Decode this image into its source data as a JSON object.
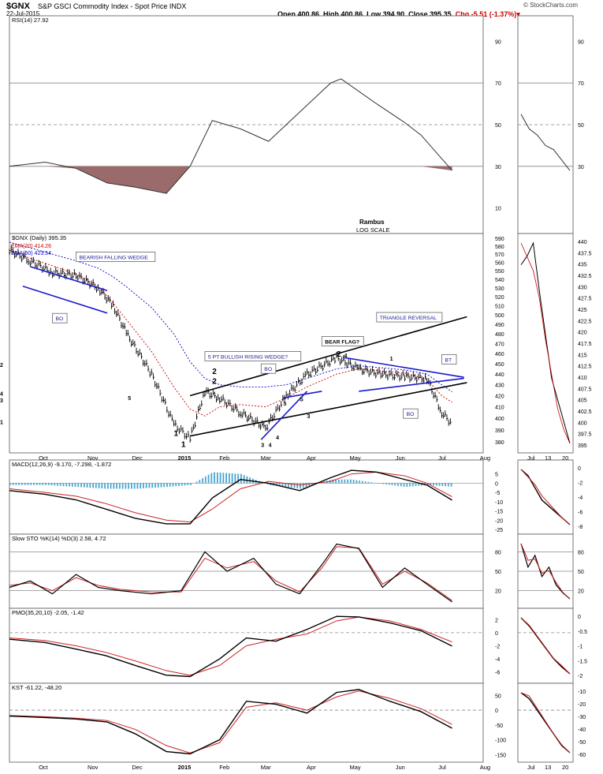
{
  "header": {
    "symbol": "$GNX",
    "name": "S&P GSCI Commodity Index - Spot Price",
    "exchange": "INDX",
    "date": "22-Jul-2015",
    "open": "Open 400.86",
    "high": "High 400.86",
    "low": "Low 394.90",
    "close": "Close 395.35",
    "chg": "Chg -5.51 (-1.37%)",
    "brand": "© StockCharts.com"
  },
  "colors": {
    "price": "#000000",
    "ema20": "#cc0000",
    "ema50": "#0000cc",
    "trend_black": "#000000",
    "trend_blue": "#1a1acc",
    "rsi_fill": "#9b6b6b",
    "hist": "#4aa6d0",
    "signal": "#cc2222"
  },
  "x_labels": [
    "Oct",
    "Nov",
    "Dec",
    "2015",
    "Feb",
    "Mar",
    "Apr",
    "May",
    "Jun",
    "Jul",
    "Aug"
  ],
  "mini_x_labels": [
    "Jul",
    "13",
    "20"
  ],
  "notes": {
    "author": "Rambus",
    "scale": "LOG SCALE"
  },
  "chart_data": [
    {
      "type": "line",
      "panel": "rsi",
      "legend": "RSI(14) 27.92",
      "ylim": [
        0,
        100
      ],
      "ticks": [
        10,
        30,
        50,
        70,
        90
      ],
      "reference_lines": [
        30,
        50,
        70
      ],
      "x": [
        "Sep 26",
        "Oct 20",
        "Nov 10",
        "Dec 1",
        "Dec 20",
        "Jan 10",
        "Jan 26",
        "Feb 10",
        "Mar 1",
        "Mar 20",
        "Apr 10",
        "May 1",
        "May 8",
        "Jun 1",
        "Jun 20",
        "Jul 1",
        "Jul 22"
      ],
      "values": [
        30,
        32,
        29,
        22,
        20,
        17,
        30,
        52,
        48,
        42,
        56,
        70,
        72,
        60,
        51,
        45,
        28
      ]
    },
    {
      "type": "line",
      "panel": "price",
      "legend": "$GNX (Daily) 395.35",
      "ylim": [
        375,
        590
      ],
      "scale": "log",
      "ticks": [
        380,
        390,
        400,
        410,
        420,
        430,
        440,
        450,
        460,
        470,
        480,
        490,
        500,
        510,
        520,
        530,
        540,
        550,
        560,
        570,
        580,
        590
      ],
      "x": [
        "Sep 26",
        "Oct 10",
        "Oct 25",
        "Nov 10",
        "Nov 25",
        "Dec 5",
        "Dec 15",
        "Dec 31",
        "Jan 15",
        "Jan 26",
        "Feb 5",
        "Feb 15",
        "Mar 1",
        "Mar 18",
        "Apr 1",
        "Apr 15",
        "May 5",
        "May 20",
        "Jun 5",
        "Jun 20",
        "Jul 5",
        "Jul 15",
        "Jul 22"
      ],
      "series": [
        {
          "name": "EMA(20) 414.26",
          "values": [
            575,
            565,
            556,
            546,
            532,
            513,
            493,
            462,
            428,
            408,
            402,
            410,
            412,
            410,
            418,
            428,
            440,
            445,
            443,
            441,
            435,
            420,
            414
          ]
        },
        {
          "name": "EMA(50) 423.54",
          "values": [
            585,
            578,
            570,
            562,
            553,
            543,
            530,
            508,
            480,
            452,
            436,
            430,
            428,
            428,
            430,
            436,
            445,
            448,
            446,
            444,
            440,
            430,
            423.5
          ]
        }
      ],
      "close": [
        575,
        562,
        548,
        545,
        530,
        510,
        478,
        440,
        395,
        383,
        424,
        418,
        405,
        392,
        420,
        440,
        456,
        445,
        440,
        438,
        436,
        405,
        395.35
      ],
      "trendlines": [
        {
          "color": "black",
          "from": [
            "Jan 26",
            385
          ],
          "to": [
            "Aug 1",
            432
          ]
        },
        {
          "color": "black",
          "from": [
            "Jan 26",
            420
          ],
          "to": [
            "Aug 1",
            498
          ]
        },
        {
          "color": "blue",
          "from": [
            "Oct 10",
            555
          ],
          "to": [
            "Dec 1",
            527
          ]
        },
        {
          "color": "blue",
          "from": [
            "Oct 5",
            532
          ],
          "to": [
            "Dec 1",
            502
          ]
        },
        {
          "color": "blue",
          "from": [
            "Mar 15",
            382
          ],
          "to": [
            "Apr 15",
            424
          ]
        },
        {
          "color": "blue",
          "from": [
            "Mar 30",
            418
          ],
          "to": [
            "Apr 25",
            424
          ]
        },
        {
          "color": "blue",
          "from": [
            "May 10",
            456
          ],
          "to": [
            "Jul 30",
            437
          ]
        },
        {
          "color": "blue",
          "from": [
            "May 20",
            424
          ],
          "to": [
            "Jul 30",
            436
          ]
        }
      ],
      "labels": [
        "BEARISH FALLING WEDGE",
        "BO",
        "5 PT BULLISH RISING WEDGE?",
        "BO",
        "BEAR FLAG?",
        "TRIANGLE REVERSAL",
        "BT",
        "BO"
      ],
      "wave_labels": [
        "1",
        "2",
        "3",
        "4",
        "5",
        "S",
        "1",
        "3",
        "2",
        "4",
        "1",
        "2",
        "3",
        "4",
        "5",
        "4",
        "1",
        "2"
      ]
    },
    {
      "type": "line",
      "panel": "macd",
      "legend": "MACD(12,26,9) -9.170, -7.298, -1.872",
      "ylim": [
        -25,
        10
      ],
      "ticks": [
        5,
        0,
        -5,
        -10,
        -15,
        -20,
        -25
      ],
      "x": [
        "Sep 26",
        "Oct 20",
        "Nov 10",
        "Nov 30",
        "Dec 20",
        "Jan 10",
        "Jan 26",
        "Feb 10",
        "Mar 1",
        "Mar 20",
        "Apr 10",
        "May 1",
        "May 15",
        "Jun 1",
        "Jun 20",
        "Jul 5",
        "Jul 22"
      ],
      "series": [
        {
          "name": "MACD",
          "values": [
            -4,
            -6,
            -9,
            -14,
            -19,
            -22,
            -22,
            -8,
            2,
            0,
            -4,
            3,
            7,
            6,
            2,
            -1,
            -9.17
          ]
        },
        {
          "name": "Signal",
          "values": [
            -3,
            -5,
            -7,
            -11,
            -16,
            -20,
            -21,
            -14,
            -3,
            1,
            -1,
            1,
            5,
            6,
            4,
            0,
            -7.298
          ]
        },
        {
          "name": "Histogram",
          "values": [
            -1,
            -1,
            -2,
            -3,
            -3,
            -2,
            -1,
            6,
            5,
            -1,
            -3,
            2,
            2,
            0,
            -2,
            -1,
            -1.872
          ]
        }
      ]
    },
    {
      "type": "line",
      "panel": "sto",
      "legend": "Slow STO %K(14) %D(3) 2.58, 4.72",
      "ylim": [
        0,
        100
      ],
      "ticks": [
        20,
        50,
        80
      ],
      "reference_lines": [
        20,
        50,
        80
      ],
      "x": [
        "Sep 26",
        "Oct 10",
        "Oct 25",
        "Nov 10",
        "Nov 25",
        "Dec 10",
        "Dec 31",
        "Jan 20",
        "Feb 5",
        "Feb 20",
        "Mar 10",
        "Mar 25",
        "Apr 10",
        "Apr 25",
        "May 5",
        "May 20",
        "Jun 5",
        "Jun 20",
        "Jul 5",
        "Jul 22"
      ],
      "series": [
        {
          "name": "%K",
          "values": [
            25,
            35,
            15,
            45,
            25,
            20,
            15,
            20,
            80,
            50,
            70,
            30,
            15,
            60,
            92,
            85,
            25,
            55,
            30,
            2.58
          ]
        },
        {
          "name": "%D",
          "values": [
            28,
            32,
            20,
            40,
            28,
            22,
            18,
            18,
            70,
            55,
            65,
            35,
            18,
            55,
            88,
            86,
            30,
            50,
            32,
            4.72
          ]
        }
      ]
    },
    {
      "type": "line",
      "panel": "pmo",
      "legend": "PMO(35,20,10) -2.05, -1.42",
      "ylim": [
        -7,
        3
      ],
      "ticks": [
        2,
        0,
        -2,
        -4,
        -6
      ],
      "reference_lines": [
        0
      ],
      "x": [
        "Sep 26",
        "Oct 20",
        "Nov 10",
        "Nov 30",
        "Dec 20",
        "Jan 10",
        "Jan 26",
        "Feb 15",
        "Mar 5",
        "Mar 25",
        "Apr 15",
        "May 5",
        "May 20",
        "Jun 10",
        "Jul 1",
        "Jul 22"
      ],
      "series": [
        {
          "name": "PMO",
          "values": [
            -1,
            -1.5,
            -2.5,
            -3.5,
            -5,
            -6.5,
            -6.7,
            -4,
            -0.8,
            -1.3,
            0.5,
            2.5,
            2.4,
            1.5,
            0.3,
            -2.05
          ]
        },
        {
          "name": "Signal",
          "values": [
            -0.8,
            -1.2,
            -2,
            -3,
            -4.3,
            -5.8,
            -6.5,
            -5,
            -2,
            -1,
            -0.2,
            1.8,
            2.4,
            1.8,
            0.5,
            -1.42
          ]
        }
      ]
    },
    {
      "type": "line",
      "panel": "kst",
      "legend": "KST -61.22, -48.20",
      "ylim": [
        -160,
        75
      ],
      "ticks": [
        50,
        0,
        -50,
        -100,
        -150
      ],
      "reference_lines": [
        0
      ],
      "x": [
        "Sep 26",
        "Oct 20",
        "Nov 10",
        "Dec 1",
        "Dec 20",
        "Jan 10",
        "Jan 26",
        "Feb 15",
        "Mar 5",
        "Mar 25",
        "Apr 15",
        "May 5",
        "May 20",
        "Jun 10",
        "Jul 1",
        "Jul 22"
      ],
      "series": [
        {
          "name": "KST",
          "values": [
            -20,
            -25,
            -30,
            -40,
            -80,
            -140,
            -148,
            -100,
            30,
            20,
            -10,
            60,
            70,
            30,
            -5,
            -61.22
          ]
        },
        {
          "name": "Signal",
          "values": [
            -18,
            -22,
            -27,
            -35,
            -65,
            -120,
            -145,
            -110,
            10,
            25,
            0,
            45,
            65,
            40,
            5,
            -48.2
          ]
        }
      ]
    }
  ],
  "mini_chart_data": {
    "rsi": {
      "ticks": [
        30,
        50,
        70,
        90
      ],
      "values": [
        55,
        48,
        45,
        40,
        38,
        33,
        28
      ]
    },
    "price": {
      "ticks": [
        395,
        397.5,
        400,
        402.5,
        405,
        407.5,
        410,
        412.5,
        415,
        417.5,
        420,
        422.5,
        425,
        427.5,
        430,
        432.5,
        435,
        437.5,
        440
      ]
    },
    "macd": {
      "ticks": [
        0,
        -2,
        -4,
        -6,
        -8
      ]
    },
    "sto": {
      "ticks": [
        20,
        50,
        80
      ]
    },
    "pmo": {
      "ticks": [
        0,
        -0.5,
        -1,
        -1.5,
        -2
      ]
    },
    "kst": {
      "ticks": [
        -10,
        -20,
        -30,
        -40,
        -50,
        -60
      ]
    }
  }
}
